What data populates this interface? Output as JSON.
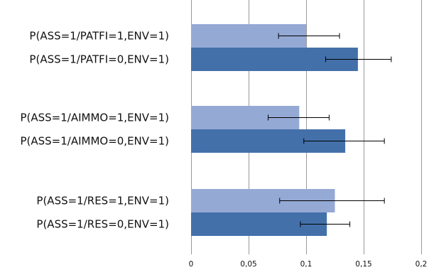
{
  "chart_data": {
    "type": "bar",
    "orientation": "horizontal",
    "title": "",
    "xlabel": "",
    "ylabel": "",
    "xlim": [
      0,
      0.2
    ],
    "ticks": [
      {
        "value": 0,
        "label": "0"
      },
      {
        "value": 0.05,
        "label": "0,05"
      },
      {
        "value": 0.1,
        "label": "0,1"
      },
      {
        "value": 0.15,
        "label": "0,15"
      },
      {
        "value": 0.2,
        "label": "0,2"
      }
    ],
    "grid": "vertical",
    "legend": "none",
    "colors": {
      "light": "#95a9d5",
      "dark": "#4470aa",
      "error_bar": "#000000",
      "grid": "#999999"
    },
    "bars": [
      {
        "label": "P(ASS=1/PATFI=1,ENV=1)",
        "value": 0.1,
        "err_low": 0.076,
        "err_high": 0.129,
        "shade": "light"
      },
      {
        "label": "P(ASS=1/PATFI=0,ENV=1)",
        "value": 0.145,
        "err_low": 0.117,
        "err_high": 0.174,
        "shade": "dark"
      },
      {
        "label": "P(ASS=1/AIMMO=1,ENV=1)",
        "value": 0.094,
        "err_low": 0.067,
        "err_high": 0.12,
        "shade": "light"
      },
      {
        "label": "P(ASS=1/AIMMO=0,ENV=1)",
        "value": 0.134,
        "err_low": 0.098,
        "err_high": 0.168,
        "shade": "dark"
      },
      {
        "label": "P(ASS=1/RES=1,ENV=1)",
        "value": 0.125,
        "err_low": 0.077,
        "err_high": 0.168,
        "shade": "light"
      },
      {
        "label": "P(ASS=1/RES=0,ENV=1)",
        "value": 0.118,
        "err_low": 0.095,
        "err_high": 0.138,
        "shade": "dark"
      }
    ]
  }
}
